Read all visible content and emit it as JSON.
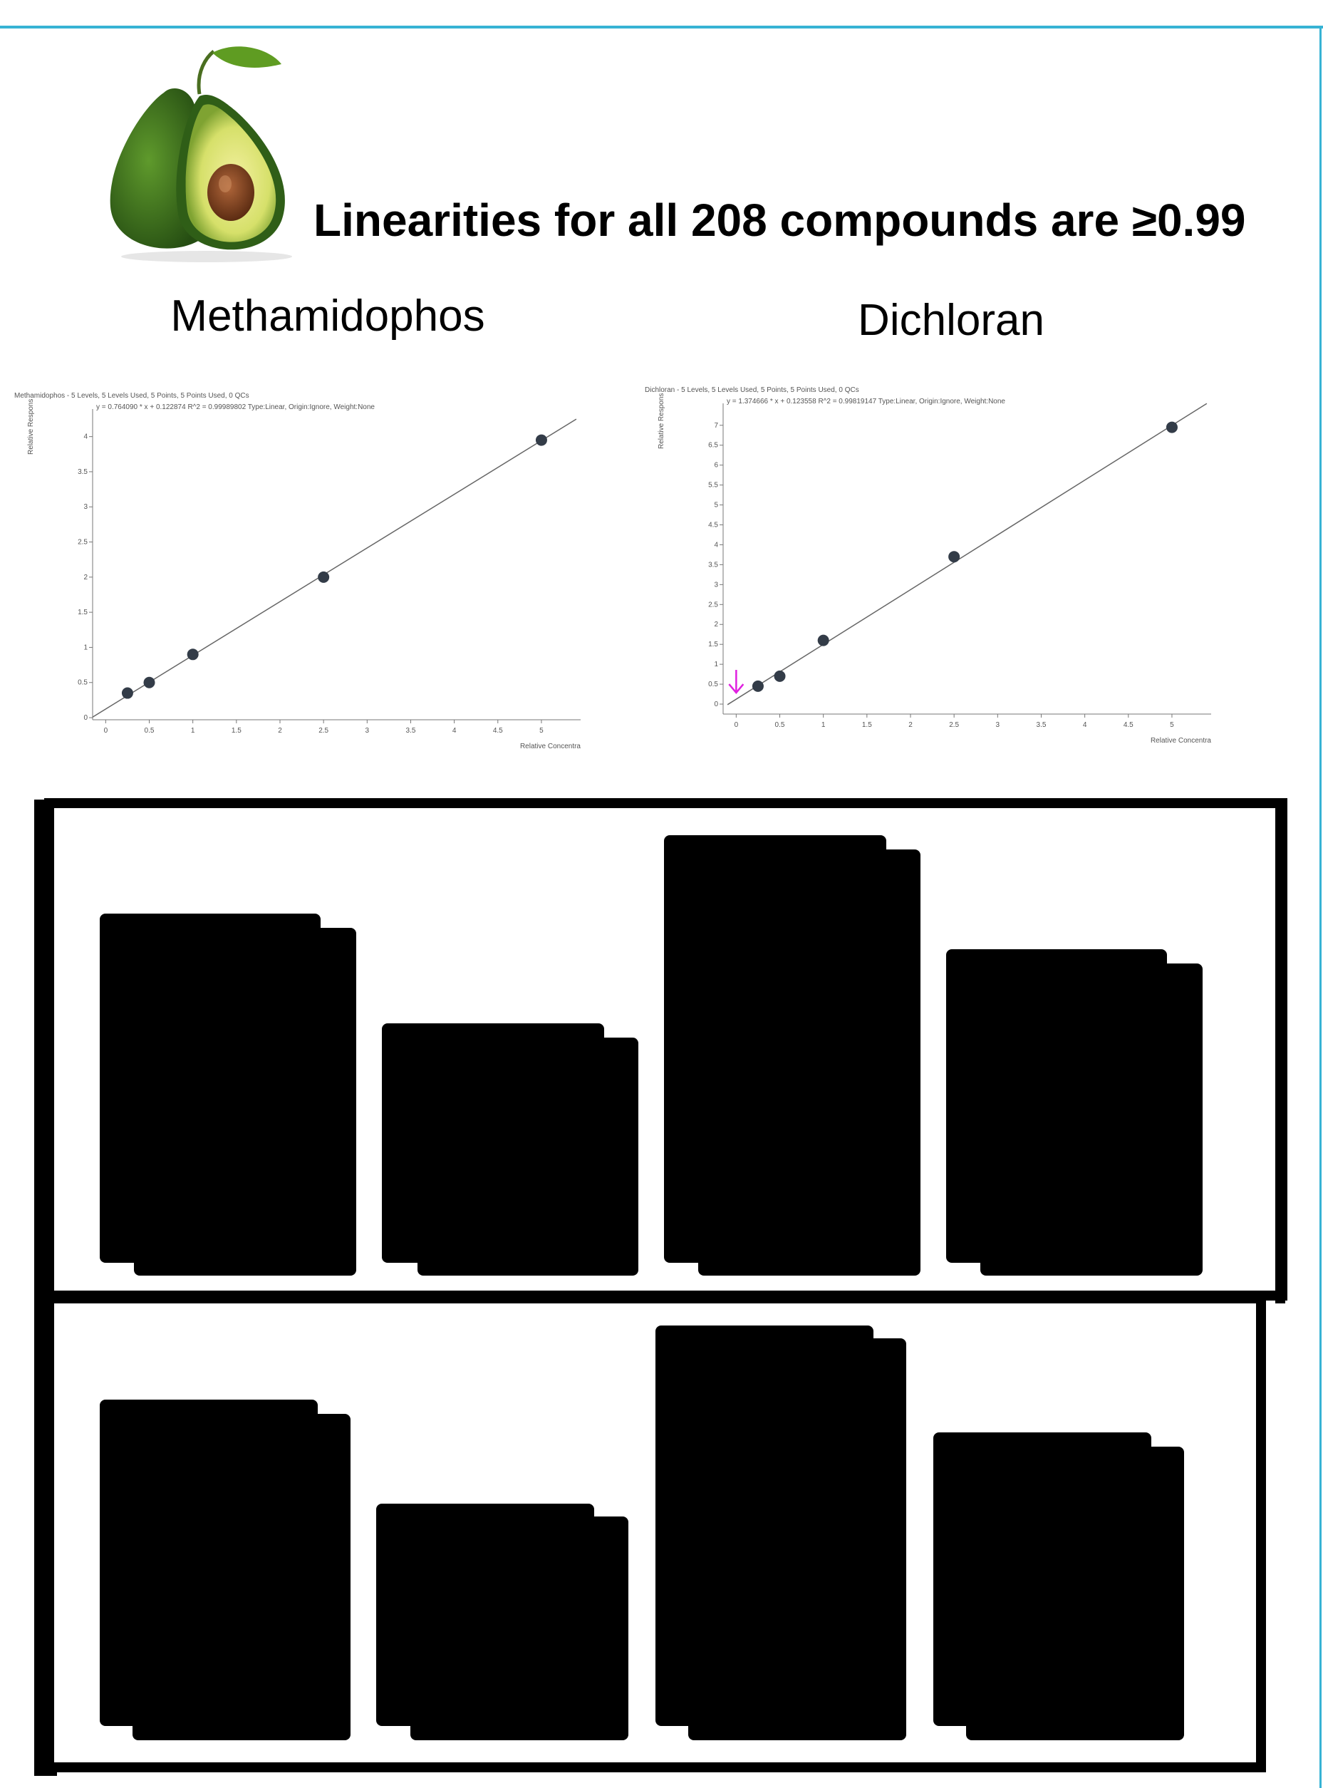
{
  "page": {
    "headline": "Linearities for all 208 compounds are ≥0.99",
    "accent_color": "#37b3d4",
    "logo_icon": "avocado-icon"
  },
  "chart_data": [
    {
      "type": "scatter",
      "name": "Methamidophos",
      "title": "Methamidophos - 5 Levels, 5 Levels Used, 5 Points, 5 Points Used, 0 QCs",
      "equation": "y = 0.764090 * x  + 0.122874 R^2 = 0.99989802 Type:Linear, Origin:Ignore, Weight:None",
      "xlabel": "Relative Concentra",
      "ylabel": "Relative Respons",
      "xlim": [
        -0.15,
        5.45
      ],
      "ylim": [
        -0.03,
        4.25
      ],
      "xticks": [
        "0",
        "0.5",
        "1",
        "1.5",
        "2",
        "2.5",
        "3",
        "3.5",
        "4",
        "4.5",
        "5"
      ],
      "yticks": [
        "0",
        "0.5",
        "1",
        "1.5",
        "2",
        "2.5",
        "3",
        "3.5",
        "4"
      ],
      "points": [
        {
          "x": 0.25,
          "y": 0.35
        },
        {
          "x": 0.5,
          "y": 0.5
        },
        {
          "x": 1,
          "y": 0.9
        },
        {
          "x": 2.5,
          "y": 2.0
        },
        {
          "x": 5,
          "y": 3.95
        }
      ],
      "fit": {
        "slope": 0.76409,
        "intercept": 0.122874,
        "x_range": [
          -0.15,
          5.4
        ]
      }
    },
    {
      "type": "scatter",
      "name": "Dichloran",
      "title": "Dichloran - 5 Levels, 5 Levels Used, 5 Points, 5 Points Used, 0 QCs",
      "equation": "y = 1.374666 * x  + 0.123558 R^2 = 0.99819147 Type:Linear, Origin:Ignore, Weight:None",
      "xlabel": "Relative Concentra",
      "ylabel": "Relative Respons",
      "xlim": [
        -0.15,
        5.45
      ],
      "ylim": [
        -0.25,
        7.3
      ],
      "xticks": [
        "0",
        "0.5",
        "1",
        "1.5",
        "2",
        "2.5",
        "3",
        "3.5",
        "4",
        "4.5",
        "5"
      ],
      "yticks": [
        "0",
        "0.5",
        "1",
        "1.5",
        "2",
        "2.5",
        "3",
        "3.5",
        "4",
        "4.5",
        "5",
        "5.5",
        "6",
        "6.5",
        "7"
      ],
      "points": [
        {
          "x": 0.25,
          "y": 0.45
        },
        {
          "x": 0.5,
          "y": 0.7
        },
        {
          "x": 1,
          "y": 1.6
        },
        {
          "x": 2.5,
          "y": 3.7
        },
        {
          "x": 5,
          "y": 6.95
        }
      ],
      "fit": {
        "slope": 1.374666,
        "intercept": 0.123558,
        "x_range": [
          -0.1,
          5.4
        ]
      },
      "marker": {
        "x": 0,
        "color": "#e020e0",
        "icon": "down-arrow-icon"
      }
    }
  ]
}
